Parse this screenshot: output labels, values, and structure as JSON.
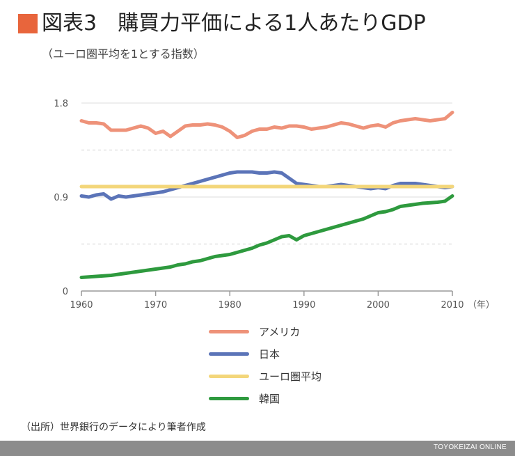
{
  "header": {
    "title": "図表3　購買力平価による1人あたりGDP",
    "subtitle": "（ユーロ圏平均を1とする指数）"
  },
  "source_note": "（出所）世界銀行のデータにより筆者作成",
  "brand": "TOYOKEIZAI ONLINE",
  "colors": {
    "title_square": "#e8653c",
    "usa": "#ee9279",
    "japan": "#5b74b8",
    "euro": "#f3d67a",
    "korea": "#2e9a3e",
    "grid": "#cccccc",
    "axis": "#999999",
    "footer": "#8c8c8c"
  },
  "chart_data": {
    "type": "line",
    "x_unit_label": "（年）",
    "x_ticks": [
      1960,
      1970,
      1980,
      1990,
      2000,
      2010
    ],
    "y_ticks": [
      {
        "value": 0,
        "label": "0"
      },
      {
        "value": 0.9,
        "label": "0.9"
      },
      {
        "value": 1.8,
        "label": "1.8"
      }
    ],
    "xlim": [
      1960,
      2010
    ],
    "ylim": [
      0,
      1.8
    ],
    "grid": "horizontal dashed at 0.45 and 1.35",
    "legend_placement": "bottom-center",
    "x": [
      1960,
      1961,
      1962,
      1963,
      1964,
      1965,
      1966,
      1967,
      1968,
      1969,
      1970,
      1971,
      1972,
      1973,
      1974,
      1975,
      1976,
      1977,
      1978,
      1979,
      1980,
      1981,
      1982,
      1983,
      1984,
      1985,
      1986,
      1987,
      1988,
      1989,
      1990,
      1991,
      1992,
      1993,
      1994,
      1995,
      1996,
      1997,
      1998,
      1999,
      2000,
      2001,
      2002,
      2003,
      2004,
      2005,
      2006,
      2007,
      2008,
      2009,
      2010
    ],
    "series": [
      {
        "name": "アメリカ",
        "color_key": "usa",
        "values": [
          1.63,
          1.61,
          1.61,
          1.6,
          1.54,
          1.54,
          1.54,
          1.56,
          1.58,
          1.56,
          1.51,
          1.53,
          1.48,
          1.53,
          1.58,
          1.59,
          1.59,
          1.6,
          1.59,
          1.57,
          1.53,
          1.47,
          1.49,
          1.53,
          1.55,
          1.55,
          1.57,
          1.56,
          1.58,
          1.58,
          1.57,
          1.55,
          1.56,
          1.57,
          1.59,
          1.61,
          1.6,
          1.58,
          1.56,
          1.58,
          1.59,
          1.57,
          1.61,
          1.63,
          1.64,
          1.65,
          1.64,
          1.63,
          1.64,
          1.65,
          1.71
        ]
      },
      {
        "name": "日本",
        "color_key": "japan",
        "values": [
          0.91,
          0.9,
          0.92,
          0.93,
          0.88,
          0.91,
          0.9,
          0.91,
          0.92,
          0.93,
          0.94,
          0.95,
          0.97,
          0.99,
          1.01,
          1.03,
          1.05,
          1.07,
          1.09,
          1.11,
          1.13,
          1.14,
          1.14,
          1.14,
          1.13,
          1.13,
          1.14,
          1.13,
          1.08,
          1.03,
          1.02,
          1.01,
          1.0,
          1.0,
          1.01,
          1.02,
          1.01,
          1.0,
          0.99,
          0.98,
          0.99,
          0.98,
          1.01,
          1.03,
          1.03,
          1.03,
          1.02,
          1.01,
          1.0,
          0.99,
          1.0
        ]
      },
      {
        "name": "ユーロ圏平均",
        "color_key": "euro",
        "values": [
          1.0,
          1.0,
          1.0,
          1.0,
          1.0,
          1.0,
          1.0,
          1.0,
          1.0,
          1.0,
          1.0,
          1.0,
          1.0,
          1.0,
          1.0,
          1.0,
          1.0,
          1.0,
          1.0,
          1.0,
          1.0,
          1.0,
          1.0,
          1.0,
          1.0,
          1.0,
          1.0,
          1.0,
          1.0,
          1.0,
          1.0,
          1.0,
          1.0,
          1.0,
          1.0,
          1.0,
          1.0,
          1.0,
          1.0,
          1.0,
          1.0,
          1.0,
          1.0,
          1.0,
          1.0,
          1.0,
          1.0,
          1.0,
          1.0,
          1.0,
          1.0
        ]
      },
      {
        "name": "韓国",
        "color_key": "korea",
        "values": [
          0.13,
          0.135,
          0.14,
          0.145,
          0.15,
          0.16,
          0.17,
          0.18,
          0.19,
          0.2,
          0.21,
          0.22,
          0.23,
          0.25,
          0.26,
          0.28,
          0.29,
          0.31,
          0.33,
          0.34,
          0.35,
          0.37,
          0.39,
          0.41,
          0.44,
          0.46,
          0.49,
          0.52,
          0.53,
          0.49,
          0.53,
          0.55,
          0.57,
          0.59,
          0.61,
          0.63,
          0.65,
          0.67,
          0.69,
          0.72,
          0.75,
          0.76,
          0.78,
          0.81,
          0.82,
          0.83,
          0.84,
          0.845,
          0.85,
          0.86,
          0.91
        ]
      }
    ]
  }
}
